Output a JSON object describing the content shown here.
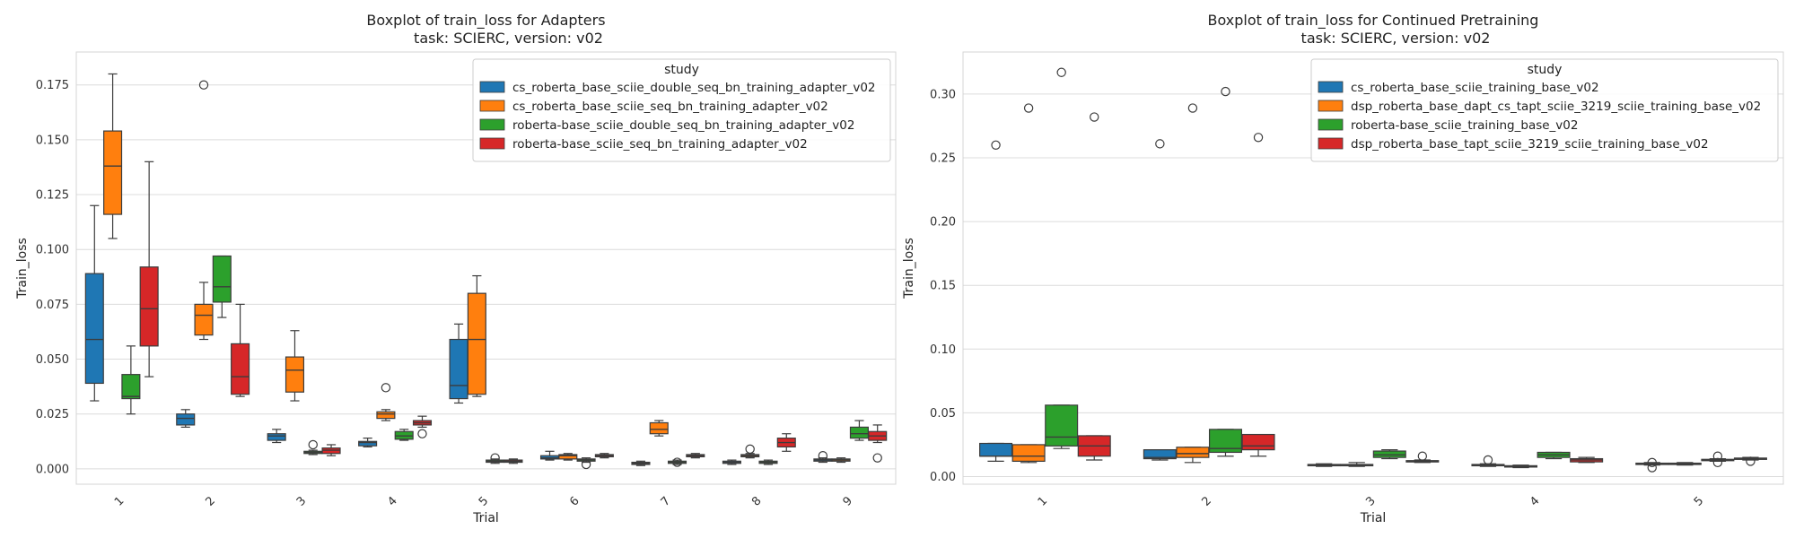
{
  "chart_data": [
    {
      "type": "boxplot",
      "title": "Boxplot of train_loss for Adapters",
      "subtitle": "task: SCIERC, version: v02",
      "xlabel": "Trial",
      "ylabel": "Train_loss",
      "ylim": [
        -0.007,
        0.19
      ],
      "yticks": [
        "0.000",
        "0.025",
        "0.050",
        "0.075",
        "0.100",
        "0.125",
        "0.150",
        "0.175"
      ],
      "categories": [
        "1",
        "2",
        "3",
        "4",
        "5",
        "6",
        "7",
        "8",
        "9"
      ],
      "grid": "horizontal",
      "legend_title": "study",
      "legend_position": "top-right",
      "series": [
        {
          "name": "cs_roberta_base_sciie_double_seq_bn_training_adapter_v02",
          "color": "#1f77b4",
          "boxes": [
            {
              "trial": "1",
              "min": 0.031,
              "q1": 0.039,
              "median": 0.059,
              "q3": 0.089,
              "max": 0.12,
              "outliers": []
            },
            {
              "trial": "2",
              "min": 0.019,
              "q1": 0.02,
              "median": 0.023,
              "q3": 0.025,
              "max": 0.027,
              "outliers": []
            },
            {
              "trial": "3",
              "min": 0.012,
              "q1": 0.013,
              "median": 0.015,
              "q3": 0.016,
              "max": 0.018,
              "outliers": []
            },
            {
              "trial": "4",
              "min": 0.01,
              "q1": 0.0105,
              "median": 0.012,
              "q3": 0.0125,
              "max": 0.014,
              "outliers": []
            },
            {
              "trial": "5",
              "min": 0.03,
              "q1": 0.032,
              "median": 0.038,
              "q3": 0.059,
              "max": 0.066,
              "outliers": []
            },
            {
              "trial": "6",
              "min": 0.004,
              "q1": 0.0045,
              "median": 0.005,
              "q3": 0.006,
              "max": 0.008,
              "outliers": []
            },
            {
              "trial": "7",
              "min": 0.0015,
              "q1": 0.002,
              "median": 0.0025,
              "q3": 0.003,
              "max": 0.0035,
              "outliers": []
            },
            {
              "trial": "8",
              "min": 0.002,
              "q1": 0.0025,
              "median": 0.003,
              "q3": 0.0035,
              "max": 0.004,
              "outliers": []
            },
            {
              "trial": "9",
              "min": 0.003,
              "q1": 0.0035,
              "median": 0.004,
              "q3": 0.0045,
              "max": 0.005,
              "outliers": [
                0.006
              ]
            }
          ]
        },
        {
          "name": "cs_roberta_base_sciie_seq_bn_training_adapter_v02",
          "color": "#ff7f0e",
          "boxes": [
            {
              "trial": "1",
              "min": 0.105,
              "q1": 0.116,
              "median": 0.138,
              "q3": 0.154,
              "max": 0.18,
              "outliers": []
            },
            {
              "trial": "2",
              "min": 0.059,
              "q1": 0.061,
              "median": 0.07,
              "q3": 0.075,
              "max": 0.085,
              "outliers": [
                0.175
              ]
            },
            {
              "trial": "3",
              "min": 0.031,
              "q1": 0.035,
              "median": 0.045,
              "q3": 0.051,
              "max": 0.063,
              "outliers": []
            },
            {
              "trial": "4",
              "min": 0.022,
              "q1": 0.023,
              "median": 0.025,
              "q3": 0.026,
              "max": 0.027,
              "outliers": [
                0.037
              ]
            },
            {
              "trial": "5",
              "min": 0.033,
              "q1": 0.034,
              "median": 0.059,
              "q3": 0.08,
              "max": 0.088,
              "outliers": []
            },
            {
              "trial": "6",
              "min": 0.004,
              "q1": 0.0045,
              "median": 0.006,
              "q3": 0.0065,
              "max": 0.007,
              "outliers": []
            },
            {
              "trial": "7",
              "min": 0.015,
              "q1": 0.016,
              "median": 0.018,
              "q3": 0.021,
              "max": 0.022,
              "outliers": []
            },
            {
              "trial": "8",
              "min": 0.005,
              "q1": 0.0055,
              "median": 0.006,
              "q3": 0.0065,
              "max": 0.007,
              "outliers": [
                0.009
              ]
            },
            {
              "trial": "9",
              "min": 0.003,
              "q1": 0.0035,
              "median": 0.004,
              "q3": 0.0045,
              "max": 0.005,
              "outliers": []
            }
          ]
        },
        {
          "name": "roberta-base_sciie_double_seq_bn_training_adapter_v02",
          "color": "#2ca02c",
          "boxes": [
            {
              "trial": "1",
              "min": 0.025,
              "q1": 0.032,
              "median": 0.033,
              "q3": 0.043,
              "max": 0.056,
              "outliers": []
            },
            {
              "trial": "2",
              "min": 0.069,
              "q1": 0.076,
              "median": 0.083,
              "q3": 0.097,
              "max": 0.097,
              "outliers": []
            },
            {
              "trial": "3",
              "min": 0.0065,
              "q1": 0.007,
              "median": 0.0075,
              "q3": 0.008,
              "max": 0.0085,
              "outliers": [
                0.011
              ]
            },
            {
              "trial": "4",
              "min": 0.013,
              "q1": 0.0135,
              "median": 0.015,
              "q3": 0.017,
              "max": 0.018,
              "outliers": []
            },
            {
              "trial": "5",
              "min": 0.0025,
              "q1": 0.003,
              "median": 0.0035,
              "q3": 0.004,
              "max": 0.0045,
              "outliers": [
                0.005
              ]
            },
            {
              "trial": "6",
              "min": 0.003,
              "q1": 0.0035,
              "median": 0.004,
              "q3": 0.0045,
              "max": 0.005,
              "outliers": [
                0.002
              ]
            },
            {
              "trial": "7",
              "min": 0.002,
              "q1": 0.0025,
              "median": 0.003,
              "q3": 0.0035,
              "max": 0.004,
              "outliers": [
                0.003
              ]
            },
            {
              "trial": "8",
              "min": 0.002,
              "q1": 0.0025,
              "median": 0.003,
              "q3": 0.0035,
              "max": 0.004,
              "outliers": []
            },
            {
              "trial": "9",
              "min": 0.013,
              "q1": 0.014,
              "median": 0.016,
              "q3": 0.019,
              "max": 0.022,
              "outliers": []
            }
          ]
        },
        {
          "name": "roberta-base_sciie_seq_bn_training_adapter_v02",
          "color": "#d62728",
          "boxes": [
            {
              "trial": "1",
              "min": 0.042,
              "q1": 0.056,
              "median": 0.073,
              "q3": 0.092,
              "max": 0.14,
              "outliers": []
            },
            {
              "trial": "2",
              "min": 0.033,
              "q1": 0.034,
              "median": 0.042,
              "q3": 0.057,
              "max": 0.075,
              "outliers": []
            },
            {
              "trial": "3",
              "min": 0.006,
              "q1": 0.007,
              "median": 0.0085,
              "q3": 0.0095,
              "max": 0.011,
              "outliers": []
            },
            {
              "trial": "4",
              "min": 0.019,
              "q1": 0.02,
              "median": 0.021,
              "q3": 0.022,
              "max": 0.024,
              "outliers": [
                0.016
              ]
            },
            {
              "trial": "5",
              "min": 0.0025,
              "q1": 0.003,
              "median": 0.0035,
              "q3": 0.004,
              "max": 0.0045,
              "outliers": []
            },
            {
              "trial": "6",
              "min": 0.005,
              "q1": 0.0055,
              "median": 0.006,
              "q3": 0.0065,
              "max": 0.007,
              "outliers": []
            },
            {
              "trial": "7",
              "min": 0.005,
              "q1": 0.0055,
              "median": 0.006,
              "q3": 0.0065,
              "max": 0.007,
              "outliers": []
            },
            {
              "trial": "8",
              "min": 0.008,
              "q1": 0.01,
              "median": 0.012,
              "q3": 0.014,
              "max": 0.016,
              "outliers": []
            },
            {
              "trial": "9",
              "min": 0.012,
              "q1": 0.013,
              "median": 0.015,
              "q3": 0.017,
              "max": 0.02,
              "outliers": [
                0.005
              ]
            }
          ]
        }
      ]
    },
    {
      "type": "boxplot",
      "title": "Boxplot of train_loss for Continued Pretraining",
      "subtitle": "task: SCIERC, version: v02",
      "xlabel": "Trial",
      "ylabel": "Train_loss",
      "ylim": [
        -0.006,
        0.333
      ],
      "yticks": [
        "0.00",
        "0.05",
        "0.10",
        "0.15",
        "0.20",
        "0.25",
        "0.30"
      ],
      "categories": [
        "1",
        "2",
        "3",
        "4",
        "5"
      ],
      "grid": "horizontal",
      "legend_title": "study",
      "legend_position": "top-right",
      "series": [
        {
          "name": "cs_roberta_base_sciie_training_base_v02",
          "color": "#1f77b4",
          "boxes": [
            {
              "trial": "1",
              "min": 0.012,
              "q1": 0.016,
              "median": 0.016,
              "q3": 0.026,
              "max": 0.026,
              "outliers": [
                0.26
              ]
            },
            {
              "trial": "2",
              "min": 0.013,
              "q1": 0.014,
              "median": 0.015,
              "q3": 0.021,
              "max": 0.021,
              "outliers": [
                0.261
              ]
            },
            {
              "trial": "3",
              "min": 0.008,
              "q1": 0.0085,
              "median": 0.009,
              "q3": 0.0095,
              "max": 0.01,
              "outliers": []
            },
            {
              "trial": "4",
              "min": 0.008,
              "q1": 0.0085,
              "median": 0.009,
              "q3": 0.0095,
              "max": 0.01,
              "outliers": [
                0.013
              ]
            },
            {
              "trial": "5",
              "min": 0.009,
              "q1": 0.0095,
              "median": 0.01,
              "q3": 0.0105,
              "max": 0.011,
              "outliers": [
                0.007,
                0.011
              ]
            }
          ]
        },
        {
          "name": "dsp_roberta_base_dapt_cs_tapt_sciie_3219_sciie_training_base_v02",
          "color": "#ff7f0e",
          "boxes": [
            {
              "trial": "1",
              "min": 0.011,
              "q1": 0.012,
              "median": 0.016,
              "q3": 0.025,
              "max": 0.025,
              "outliers": [
                0.289
              ]
            },
            {
              "trial": "2",
              "min": 0.011,
              "q1": 0.015,
              "median": 0.018,
              "q3": 0.023,
              "max": 0.023,
              "outliers": [
                0.289
              ]
            },
            {
              "trial": "3",
              "min": 0.008,
              "q1": 0.0085,
              "median": 0.009,
              "q3": 0.0095,
              "max": 0.011,
              "outliers": []
            },
            {
              "trial": "4",
              "min": 0.007,
              "q1": 0.0075,
              "median": 0.008,
              "q3": 0.0085,
              "max": 0.009,
              "outliers": []
            },
            {
              "trial": "5",
              "min": 0.009,
              "q1": 0.0095,
              "median": 0.01,
              "q3": 0.0105,
              "max": 0.011,
              "outliers": []
            }
          ]
        },
        {
          "name": "roberta-base_sciie_training_base_v02",
          "color": "#2ca02c",
          "boxes": [
            {
              "trial": "1",
              "min": 0.022,
              "q1": 0.024,
              "median": 0.031,
              "q3": 0.056,
              "max": 0.056,
              "outliers": [
                0.317
              ]
            },
            {
              "trial": "2",
              "min": 0.016,
              "q1": 0.019,
              "median": 0.022,
              "q3": 0.037,
              "max": 0.037,
              "outliers": [
                0.302
              ]
            },
            {
              "trial": "3",
              "min": 0.014,
              "q1": 0.015,
              "median": 0.017,
              "q3": 0.02,
              "max": 0.021,
              "outliers": []
            },
            {
              "trial": "4",
              "min": 0.014,
              "q1": 0.015,
              "median": 0.017,
              "q3": 0.019,
              "max": 0.019,
              "outliers": []
            },
            {
              "trial": "5",
              "min": 0.012,
              "q1": 0.0125,
              "median": 0.013,
              "q3": 0.0135,
              "max": 0.014,
              "outliers": [
                0.011,
                0.016
              ]
            }
          ]
        },
        {
          "name": "dsp_roberta_base_tapt_sciie_3219_sciie_training_base_v02",
          "color": "#d62728",
          "boxes": [
            {
              "trial": "1",
              "min": 0.013,
              "q1": 0.016,
              "median": 0.024,
              "q3": 0.032,
              "max": 0.032,
              "outliers": [
                0.282
              ]
            },
            {
              "trial": "2",
              "min": 0.016,
              "q1": 0.021,
              "median": 0.024,
              "q3": 0.033,
              "max": 0.033,
              "outliers": [
                0.266
              ]
            },
            {
              "trial": "3",
              "min": 0.011,
              "q1": 0.0115,
              "median": 0.012,
              "q3": 0.0125,
              "max": 0.013,
              "outliers": [
                0.016
              ]
            },
            {
              "trial": "4",
              "min": 0.011,
              "q1": 0.0115,
              "median": 0.013,
              "q3": 0.014,
              "max": 0.015,
              "outliers": []
            },
            {
              "trial": "5",
              "min": 0.013,
              "q1": 0.0135,
              "median": 0.014,
              "q3": 0.0145,
              "max": 0.015,
              "outliers": [
                0.012
              ]
            }
          ]
        }
      ]
    }
  ]
}
